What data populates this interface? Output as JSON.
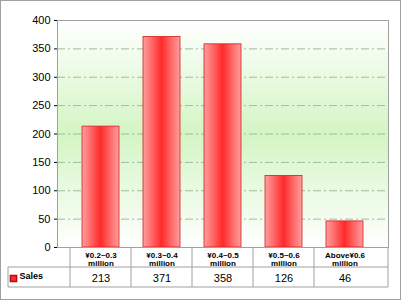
{
  "chart_data": {
    "type": "bar",
    "categories": [
      "¥0.2~0.3 million",
      "¥0.3~0.4 million",
      "¥0.4~0.5 million",
      "¥0.5~0.6 million",
      "Above¥0.6 million"
    ],
    "series": [
      {
        "name": "Sales",
        "color": "#ff2a2a",
        "values": [
          213,
          371,
          358,
          126,
          46
        ]
      }
    ],
    "ylim": [
      0,
      400
    ],
    "yticks": [
      0,
      50,
      100,
      150,
      200,
      250,
      300,
      350,
      400
    ],
    "grid": true
  }
}
